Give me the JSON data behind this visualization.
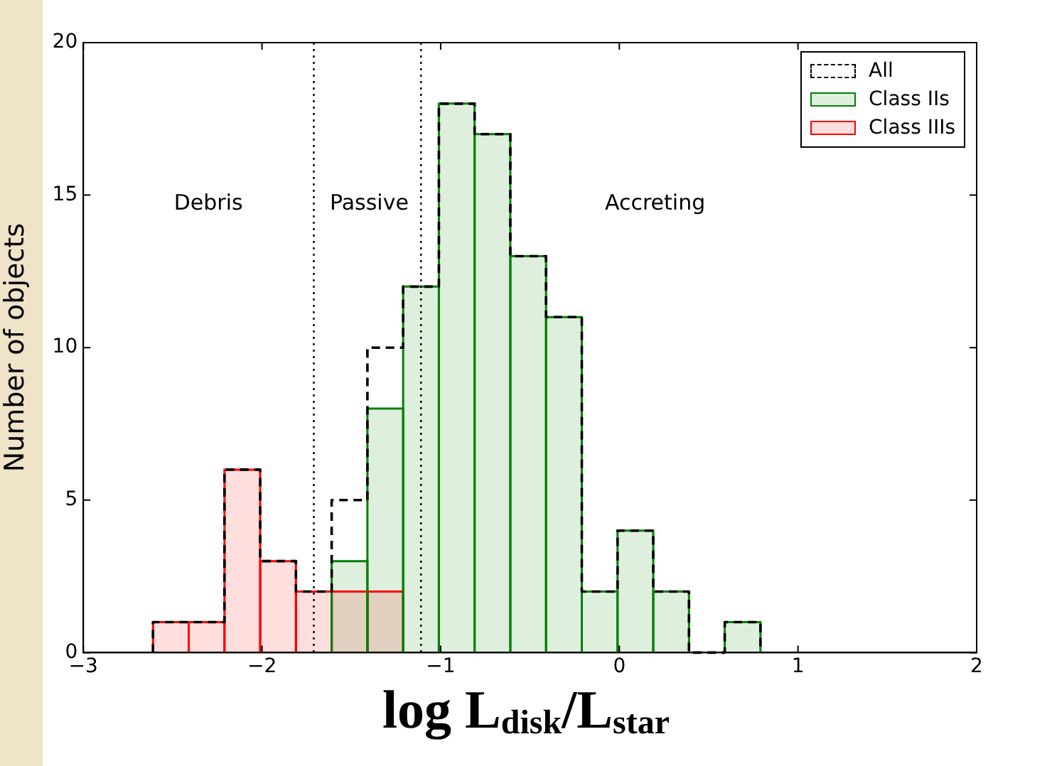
{
  "chart_data": {
    "type": "histogram",
    "xlabel": "log L$_{disk}$/L$_{star}$",
    "ylabel": "Number of objects",
    "bins": [
      -2.61,
      -2.41,
      -2.21,
      -2.01,
      -1.81,
      -1.61,
      -1.41,
      -1.21,
      -1.01,
      -0.81,
      -0.61,
      -0.41,
      -0.21,
      -0.01,
      0.19,
      0.39,
      0.59,
      0.79
    ],
    "series": [
      {
        "name": "All",
        "color": "#000000",
        "line_style": "dashed",
        "values": [
          1,
          1,
          6,
          3,
          2,
          5,
          10,
          12,
          18,
          17,
          13,
          11,
          2,
          4,
          2,
          0,
          1
        ]
      },
      {
        "name": "Class IIs",
        "color": "#008000",
        "values": [
          0,
          0,
          0,
          0,
          0,
          3,
          8,
          12,
          18,
          17,
          13,
          11,
          2,
          4,
          2,
          0,
          1
        ]
      },
      {
        "name": "Class IIIs",
        "color": "#ff0000",
        "values": [
          1,
          1,
          6,
          3,
          2,
          2,
          2,
          0,
          0,
          0,
          0,
          0,
          0,
          0,
          0,
          0,
          0
        ]
      }
    ],
    "xlim": [
      -3,
      2
    ],
    "xticks": [
      {
        "value": -3,
        "label": "−3"
      },
      {
        "value": -2,
        "label": "−2"
      },
      {
        "value": -1,
        "label": "−1"
      },
      0,
      1,
      2
    ],
    "ylim": [
      0,
      20
    ],
    "yticks": [
      0,
      5,
      10,
      15,
      20
    ],
    "grid": false,
    "legend": "top right",
    "ref_lines": [
      {
        "axis": "x",
        "value": -1.71,
        "line_style": "dotted",
        "color": "#000000"
      },
      {
        "axis": "x",
        "value": -1.11,
        "line_style": "dotted",
        "color": "#000000"
      }
    ],
    "annotations": [
      "Debris",
      "Passive",
      "Accreting"
    ]
  }
}
